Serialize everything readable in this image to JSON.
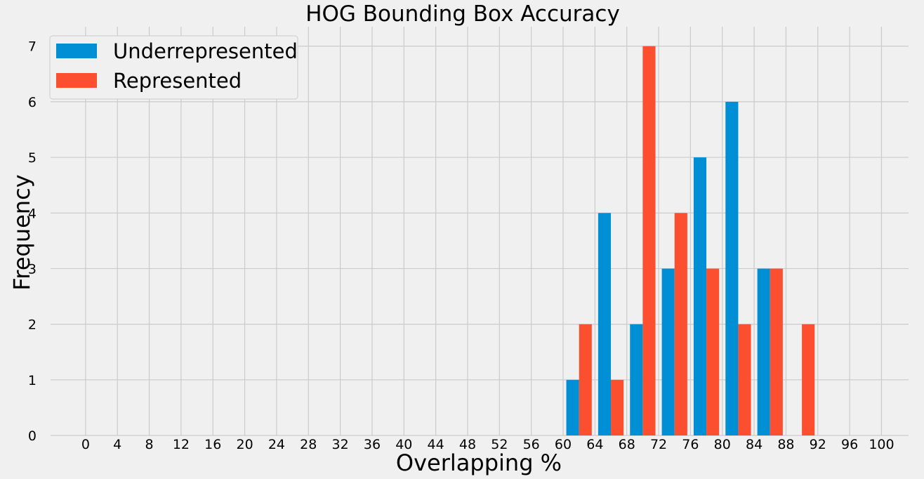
{
  "chart_data": {
    "type": "bar",
    "title": "HOG Bounding Box Accuracy",
    "xlabel": "Overlapping %",
    "ylabel": "Frequency",
    "x_ticks": [
      0,
      4,
      8,
      12,
      16,
      20,
      24,
      28,
      32,
      36,
      40,
      44,
      48,
      52,
      56,
      60,
      64,
      68,
      72,
      76,
      80,
      84,
      88,
      92,
      96,
      100
    ],
    "y_ticks": [
      0,
      1,
      2,
      3,
      4,
      5,
      6,
      7
    ],
    "bins": [
      [
        60,
        64
      ],
      [
        64,
        68
      ],
      [
        68,
        72
      ],
      [
        72,
        76
      ],
      [
        76,
        80
      ],
      [
        80,
        84
      ],
      [
        84,
        88
      ],
      [
        88,
        92
      ]
    ],
    "series": [
      {
        "name": "Underrepresented",
        "color": "#008fd5",
        "values": [
          1,
          4,
          2,
          3,
          5,
          6,
          3,
          0
        ]
      },
      {
        "name": "Represented",
        "color": "#fc4f30",
        "values": [
          2,
          1,
          7,
          4,
          3,
          2,
          3,
          2
        ]
      }
    ],
    "xlim": [
      -4.4,
      103.4
    ],
    "ylim": [
      0,
      7.35
    ],
    "grid": true,
    "legend_position": "top-left"
  }
}
